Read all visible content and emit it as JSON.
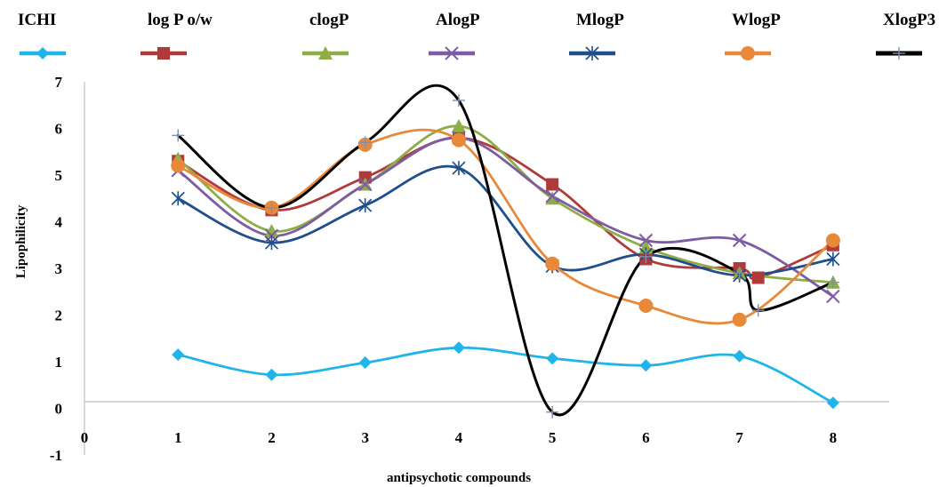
{
  "chart_data": {
    "type": "line",
    "xlabel": "antipsychotic compounds",
    "ylabel": "Lipophilicity",
    "xlim": [
      0,
      8.6
    ],
    "ylim": [
      -1,
      7
    ],
    "x_ticks": [
      "0",
      "1",
      "2",
      "3",
      "4",
      "5",
      "6",
      "7",
      "8"
    ],
    "y_ticks": [
      "-1",
      "0",
      "1",
      "2",
      "3",
      "4",
      "5",
      "6",
      "7"
    ],
    "legend_position": "top",
    "smooth": true,
    "grid": false,
    "series": [
      {
        "name": "ICHI",
        "color": "#1FB4EA",
        "marker": "diamond",
        "x": [
          1,
          2,
          3,
          4,
          5,
          6,
          7,
          8
        ],
        "values": [
          1.15,
          0.72,
          0.98,
          1.3,
          1.07,
          0.92,
          1.12,
          0.12
        ]
      },
      {
        "name": "log P o/w",
        "color": "#B03A3A",
        "marker": "square",
        "x": [
          1,
          2,
          3,
          4,
          5,
          6,
          7,
          7.2,
          8
        ],
        "values": [
          5.3,
          4.25,
          4.95,
          5.8,
          4.8,
          3.2,
          3.0,
          2.8,
          3.5
        ]
      },
      {
        "name": "clogP",
        "color": "#8DAE46",
        "marker": "triangle",
        "x": [
          1,
          2,
          3,
          4,
          5,
          6,
          7,
          8
        ],
        "values": [
          5.35,
          3.8,
          4.8,
          6.05,
          4.5,
          3.45,
          2.9,
          2.7
        ]
      },
      {
        "name": "AlogP",
        "color": "#7E5CA3",
        "marker": "x",
        "x": [
          1,
          2,
          3,
          4,
          5,
          6,
          7,
          8
        ],
        "values": [
          5.1,
          3.7,
          4.8,
          5.8,
          4.55,
          3.6,
          3.6,
          2.4
        ]
      },
      {
        "name": "MlogP",
        "color": "#1F4E8C",
        "marker": "asterisk",
        "x": [
          1,
          2,
          3,
          4,
          5,
          6,
          7,
          8
        ],
        "values": [
          4.5,
          3.55,
          4.35,
          5.15,
          3.05,
          3.3,
          2.85,
          3.2
        ]
      },
      {
        "name": "WlogP",
        "color": "#E8893A",
        "marker": "circle",
        "x": [
          1,
          2,
          3,
          4,
          5,
          6,
          7,
          8
        ],
        "values": [
          5.2,
          4.3,
          5.65,
          5.75,
          3.1,
          2.2,
          1.9,
          3.6
        ]
      },
      {
        "name": "XlogP3",
        "color": "#000000",
        "marker": "plus",
        "x": [
          1,
          2,
          3,
          4,
          5,
          6,
          7,
          7.2,
          8
        ],
        "values": [
          5.85,
          4.3,
          5.7,
          6.6,
          -0.08,
          3.25,
          2.9,
          2.1,
          2.7
        ]
      }
    ]
  }
}
